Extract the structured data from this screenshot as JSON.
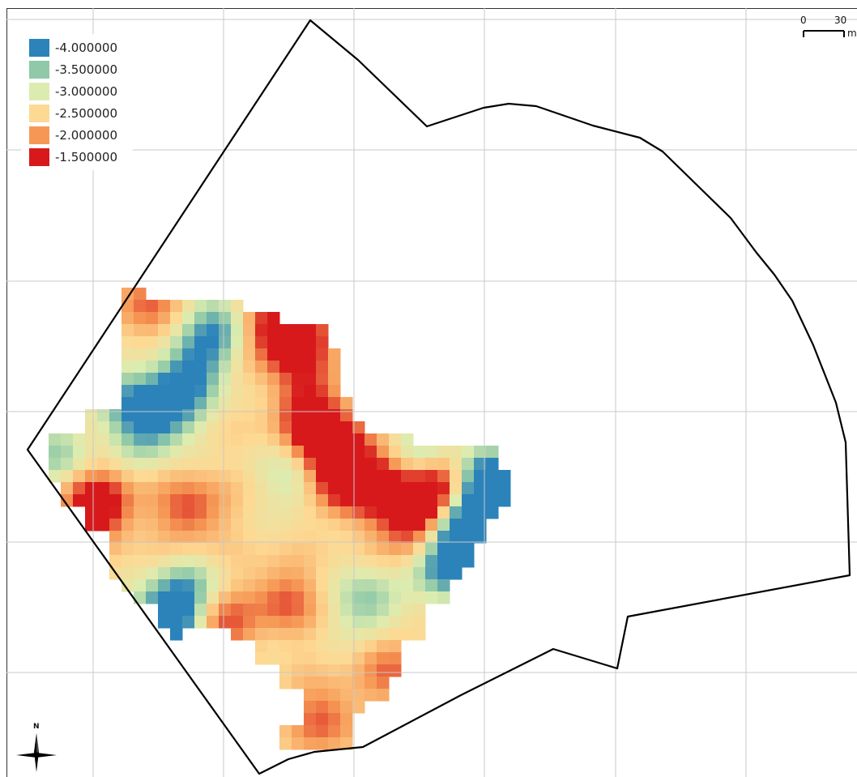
{
  "legend": {
    "items": [
      {
        "label": "-4.000000",
        "color": "#2b83ba"
      },
      {
        "label": "-3.500000",
        "color": "#8fc9a8"
      },
      {
        "label": "-3.000000",
        "color": "#dcecb0"
      },
      {
        "label": "-2.500000",
        "color": "#fdd993"
      },
      {
        "label": "-2.000000",
        "color": "#f69855"
      },
      {
        "label": "-1.500000",
        "color": "#d7191c"
      }
    ]
  },
  "scalebar": {
    "label_start": "0",
    "label_end": "30",
    "unit": "m"
  },
  "north_arrow": {
    "label": "N",
    "icon": "compass-star-icon"
  },
  "map": {
    "grid": "on",
    "boundary": "black outline of study area",
    "raster_value_range": [
      -4.0,
      -1.5
    ]
  }
}
